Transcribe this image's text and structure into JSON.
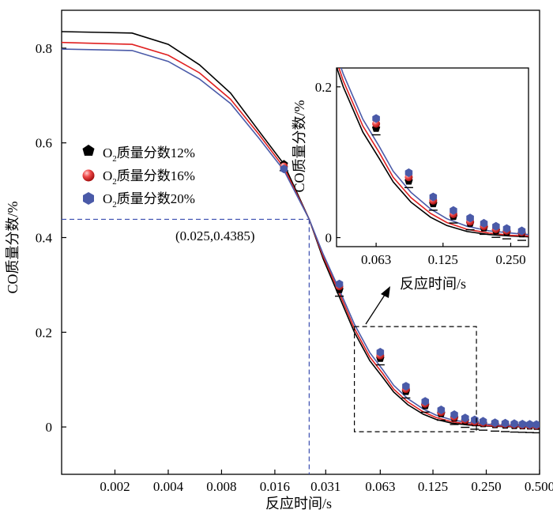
{
  "chart_data": {
    "type": "line",
    "xlabel": "反应时间/s",
    "ylabel": "CO质量分数/%",
    "x_scale": "log2",
    "xlim": [
      0.001,
      0.5
    ],
    "ylim": [
      -0.1,
      0.88
    ],
    "x_ticks": [
      {
        "value": 0.002,
        "label": "0.002"
      },
      {
        "value": 0.004,
        "label": "0.004"
      },
      {
        "value": 0.008,
        "label": "0.008"
      },
      {
        "value": 0.016,
        "label": "0.016"
      },
      {
        "value": 0.031,
        "label": "0.031"
      },
      {
        "value": 0.063,
        "label": "0.063"
      },
      {
        "value": 0.125,
        "label": "0.125"
      },
      {
        "value": 0.25,
        "label": "0.250"
      },
      {
        "value": 0.5,
        "label": "0.500"
      }
    ],
    "y_ticks": [
      {
        "value": 0,
        "label": "0"
      },
      {
        "value": 0.2,
        "label": "0.2"
      },
      {
        "value": 0.4,
        "label": "0.4"
      },
      {
        "value": 0.6,
        "label": "0.6"
      },
      {
        "value": 0.8,
        "label": "0.8"
      }
    ],
    "annotation": {
      "text": "(0.025,0.4385)",
      "x": 0.025,
      "y": 0.4385
    },
    "legend": {
      "position": "left-center",
      "prefix": "O",
      "subscript": "2",
      "labels": [
        "质量分数12%",
        "质量分数16%",
        "质量分数20%"
      ]
    },
    "series": [
      {
        "name": "O2质量分数12%",
        "color": "#000000",
        "marker": "pentagon-black",
        "x": [
          0.001,
          0.0025,
          0.004,
          0.006,
          0.009,
          0.013,
          0.018,
          0.025,
          0.03,
          0.037,
          0.045,
          0.055,
          0.065,
          0.075,
          0.09,
          0.11,
          0.13,
          0.16,
          0.2,
          0.25,
          0.3,
          0.37,
          0.45,
          0.5
        ],
        "y": [
          0.835,
          0.832,
          0.808,
          0.765,
          0.705,
          0.625,
          0.555,
          0.4385,
          0.355,
          0.275,
          0.2,
          0.14,
          0.105,
          0.074,
          0.047,
          0.027,
          0.016,
          0.008,
          0.004,
          0.002,
          0.001,
          0.0005,
          0.0003,
          0.0002
        ],
        "points_x": [
          0.018,
          0.037,
          0.063,
          0.088,
          0.113,
          0.139,
          0.165,
          0.19,
          0.215,
          0.24,
          0.28,
          0.32,
          0.36,
          0.4,
          0.44,
          0.48
        ],
        "points_y": [
          0.555,
          0.29,
          0.145,
          0.075,
          0.045,
          0.028,
          0.019,
          0.013,
          0.009,
          0.007,
          0.005,
          0.004,
          0.003,
          0.0025,
          0.002,
          0.0015
        ]
      },
      {
        "name": "O2质量分数16%",
        "color": "#e02020",
        "marker": "sphere-red",
        "x": [
          0.001,
          0.0025,
          0.004,
          0.006,
          0.009,
          0.013,
          0.018,
          0.025,
          0.03,
          0.037,
          0.045,
          0.055,
          0.065,
          0.075,
          0.09,
          0.11,
          0.13,
          0.16,
          0.2,
          0.25,
          0.3,
          0.37,
          0.45,
          0.5
        ],
        "y": [
          0.812,
          0.808,
          0.785,
          0.748,
          0.692,
          0.618,
          0.548,
          0.4385,
          0.36,
          0.283,
          0.208,
          0.148,
          0.113,
          0.08,
          0.053,
          0.032,
          0.02,
          0.011,
          0.006,
          0.003,
          0.002,
          0.001,
          0.0006,
          0.0004
        ],
        "points_x": [
          0.018,
          0.037,
          0.063,
          0.088,
          0.113,
          0.139,
          0.165,
          0.19,
          0.215,
          0.24,
          0.28,
          0.32,
          0.36,
          0.4,
          0.44,
          0.48
        ],
        "points_y": [
          0.55,
          0.297,
          0.151,
          0.08,
          0.049,
          0.031,
          0.021,
          0.015,
          0.011,
          0.009,
          0.007,
          0.006,
          0.005,
          0.004,
          0.0035,
          0.003
        ]
      },
      {
        "name": "O2质量分数20%",
        "color": "#4a5aa8",
        "marker": "hexagon-blue",
        "x": [
          0.001,
          0.0025,
          0.004,
          0.006,
          0.009,
          0.013,
          0.018,
          0.025,
          0.03,
          0.037,
          0.045,
          0.055,
          0.065,
          0.075,
          0.09,
          0.11,
          0.13,
          0.16,
          0.2,
          0.25,
          0.3,
          0.37,
          0.45,
          0.5
        ],
        "y": [
          0.798,
          0.795,
          0.772,
          0.735,
          0.683,
          0.61,
          0.542,
          0.4385,
          0.365,
          0.29,
          0.217,
          0.157,
          0.121,
          0.088,
          0.06,
          0.038,
          0.025,
          0.015,
          0.009,
          0.006,
          0.004,
          0.003,
          0.0025,
          0.002
        ],
        "points_x": [
          0.018,
          0.037,
          0.063,
          0.088,
          0.113,
          0.139,
          0.165,
          0.19,
          0.215,
          0.24,
          0.28,
          0.32,
          0.36,
          0.4,
          0.44,
          0.48
        ],
        "points_y": [
          0.545,
          0.302,
          0.158,
          0.086,
          0.054,
          0.036,
          0.026,
          0.019,
          0.015,
          0.012,
          0.009,
          0.008,
          0.007,
          0.006,
          0.0055,
          0.005
        ]
      }
    ],
    "inset": {
      "xlabel": "反应时间/s",
      "ylabel": "CO质量分数/%",
      "xlim": [
        0.042,
        0.3
      ],
      "ylim": [
        -0.012,
        0.225
      ],
      "x_ticks": [
        {
          "value": 0.063,
          "label": "0.063"
        },
        {
          "value": 0.125,
          "label": "0.125"
        },
        {
          "value": 0.25,
          "label": "0.250"
        }
      ],
      "y_ticks": [
        {
          "value": 0,
          "label": "0"
        },
        {
          "value": 0.2,
          "label": "0.2"
        }
      ],
      "zoom_region": {
        "x": [
          0.045,
          0.22
        ],
        "y": [
          -0.01,
          0.212
        ]
      }
    }
  }
}
